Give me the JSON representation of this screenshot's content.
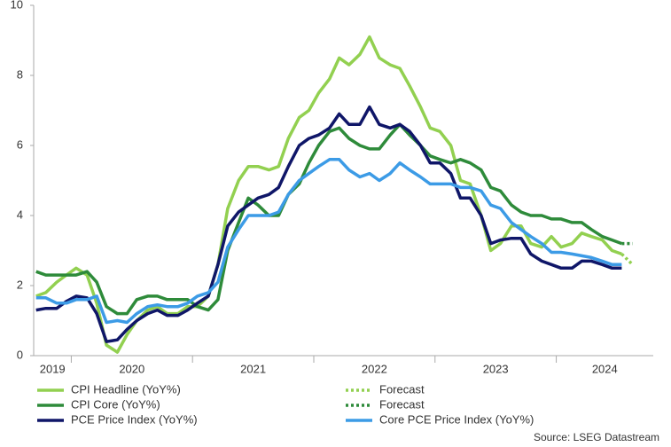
{
  "chart_data": {
    "type": "line",
    "x": [
      2019.71,
      2019.79,
      2019.88,
      2019.96,
      2020.04,
      2020.13,
      2020.21,
      2020.29,
      2020.38,
      2020.46,
      2020.54,
      2020.63,
      2020.71,
      2020.79,
      2020.88,
      2020.96,
      2021.04,
      2021.13,
      2021.21,
      2021.29,
      2021.38,
      2021.46,
      2021.54,
      2021.63,
      2021.71,
      2021.79,
      2021.88,
      2021.96,
      2022.04,
      2022.13,
      2022.21,
      2022.29,
      2022.38,
      2022.46,
      2022.54,
      2022.63,
      2022.71,
      2022.79,
      2022.88,
      2022.96,
      2023.04,
      2023.13,
      2023.21,
      2023.29,
      2023.38,
      2023.46,
      2023.54,
      2023.63,
      2023.71,
      2023.79,
      2023.88,
      2023.96,
      2024.04,
      2024.13,
      2024.21,
      2024.29,
      2024.38,
      2024.46,
      2024.54
    ],
    "series": [
      {
        "name": "CPI Headline (YoY%)",
        "color": "#92d050",
        "style": "solid",
        "values": [
          1.7,
          1.8,
          2.1,
          2.3,
          2.5,
          2.3,
          1.5,
          0.3,
          0.1,
          0.6,
          1.0,
          1.3,
          1.4,
          1.2,
          1.2,
          1.4,
          1.4,
          1.7,
          2.6,
          4.2,
          5.0,
          5.4,
          5.4,
          5.3,
          5.4,
          6.2,
          6.8,
          7.0,
          7.5,
          7.9,
          8.5,
          8.3,
          8.6,
          9.1,
          8.5,
          8.3,
          8.2,
          7.7,
          7.1,
          6.5,
          6.4,
          6.0,
          5.0,
          4.9,
          4.0,
          3.0,
          3.2,
          3.7,
          3.7,
          3.2,
          3.1,
          3.4,
          3.1,
          3.2,
          3.5,
          3.4,
          3.3,
          3.0,
          2.9
        ]
      },
      {
        "name": "Forecast",
        "color": "#92d050",
        "style": "dotted",
        "x": [
          2024.54,
          2024.63
        ],
        "values": [
          2.9,
          2.6
        ]
      },
      {
        "name": "CPI Core (YoY%)",
        "color": "#2e8b3a",
        "style": "solid",
        "values": [
          2.4,
          2.3,
          2.3,
          2.3,
          2.3,
          2.4,
          2.1,
          1.4,
          1.2,
          1.2,
          1.6,
          1.7,
          1.7,
          1.6,
          1.6,
          1.6,
          1.4,
          1.3,
          1.6,
          3.0,
          3.8,
          4.5,
          4.3,
          4.0,
          4.0,
          4.6,
          4.9,
          5.5,
          6.0,
          6.4,
          6.5,
          6.2,
          6.0,
          5.9,
          5.9,
          6.3,
          6.6,
          6.3,
          6.0,
          5.7,
          5.6,
          5.5,
          5.6,
          5.5,
          5.3,
          4.8,
          4.7,
          4.3,
          4.1,
          4.0,
          4.0,
          3.9,
          3.9,
          3.8,
          3.8,
          3.6,
          3.4,
          3.3,
          3.2
        ]
      },
      {
        "name": "Forecast",
        "color": "#2e8b3a",
        "style": "dotted",
        "x": [
          2024.54,
          2024.63
        ],
        "values": [
          3.2,
          3.2
        ]
      },
      {
        "name": "PCE Price Index (YoY%)",
        "color": "#0f1668",
        "style": "solid",
        "values": [
          1.3,
          1.35,
          1.35,
          1.55,
          1.7,
          1.65,
          1.2,
          0.4,
          0.45,
          0.75,
          1.0,
          1.2,
          1.3,
          1.15,
          1.15,
          1.3,
          1.5,
          1.7,
          2.6,
          3.7,
          4.1,
          4.3,
          4.5,
          4.6,
          4.8,
          5.4,
          6.0,
          6.2,
          6.3,
          6.5,
          6.9,
          6.6,
          6.6,
          7.1,
          6.6,
          6.5,
          6.6,
          6.4,
          6.0,
          5.5,
          5.5,
          5.2,
          4.5,
          4.5,
          4.0,
          3.2,
          3.3,
          3.35,
          3.35,
          2.9,
          2.7,
          2.6,
          2.5,
          2.5,
          2.7,
          2.7,
          2.6,
          2.5,
          2.5
        ]
      },
      {
        "name": "Core PCE Price Index (YoY%)",
        "color": "#3c9be6",
        "style": "solid",
        "values": [
          1.65,
          1.65,
          1.5,
          1.5,
          1.6,
          1.6,
          1.7,
          0.95,
          1.0,
          0.95,
          1.2,
          1.4,
          1.45,
          1.4,
          1.4,
          1.5,
          1.7,
          1.8,
          2.1,
          3.1,
          3.6,
          4.0,
          4.0,
          4.0,
          4.1,
          4.6,
          5.0,
          5.2,
          5.4,
          5.6,
          5.6,
          5.3,
          5.1,
          5.2,
          5.0,
          5.2,
          5.5,
          5.3,
          5.1,
          4.9,
          4.9,
          4.9,
          4.8,
          4.8,
          4.7,
          4.3,
          4.2,
          3.8,
          3.6,
          3.4,
          3.2,
          2.95,
          2.95,
          2.9,
          2.85,
          2.8,
          2.7,
          2.6,
          2.6
        ]
      }
    ],
    "xlim": [
      2019.69,
      2024.8
    ],
    "xticks": [
      {
        "value": 2019,
        "label": "2019"
      },
      {
        "value": 2020,
        "label": "2020"
      },
      {
        "value": 2021,
        "label": "2021"
      },
      {
        "value": 2022,
        "label": "2022"
      },
      {
        "value": 2023,
        "label": "2023"
      },
      {
        "value": 2024,
        "label": "2024"
      }
    ],
    "ylim": [
      0,
      10
    ],
    "yticks": [
      0,
      2,
      4,
      6,
      8,
      10
    ],
    "grid": false,
    "source": "Source: LSEG Datastream"
  }
}
